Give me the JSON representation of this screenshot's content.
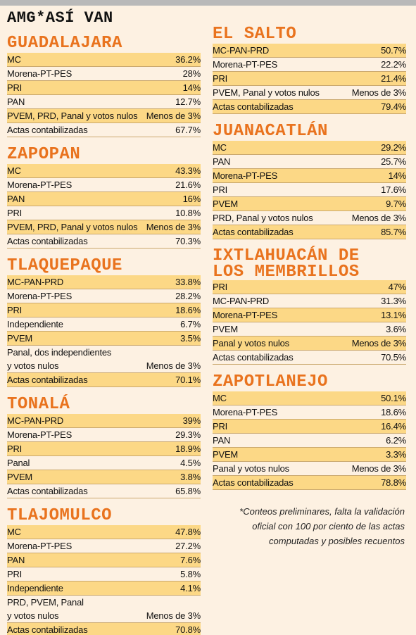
{
  "title": "AMG*ASÍ VAN",
  "columns": [
    [
      {
        "name": "GUADALAJARA",
        "rows": [
          [
            "MC",
            "36.2%"
          ],
          [
            "Morena-PT-PES",
            "28%"
          ],
          [
            "PRI",
            "14%"
          ],
          [
            "PAN",
            "12.7%"
          ],
          [
            "PVEM, PRD, Panal y votos nulos",
            "Menos de 3%"
          ],
          [
            "Actas contabilizadas",
            "67.7%"
          ]
        ]
      },
      {
        "name": "ZAPOPAN",
        "rows": [
          [
            "MC",
            "43.3%"
          ],
          [
            "Morena-PT-PES",
            "21.6%"
          ],
          [
            "PAN",
            "16%"
          ],
          [
            "PRI",
            "10.8%"
          ],
          [
            "PVEM, PRD, Panal y votos nulos",
            "Menos de 3%"
          ],
          [
            "Actas contabilizadas",
            "70.3%"
          ]
        ]
      },
      {
        "name": "TLAQUEPAQUE",
        "rows": [
          [
            "MC-PAN-PRD",
            "33.8%"
          ],
          [
            "Morena-PT-PES",
            "28.2%"
          ],
          [
            "PRI",
            "18.6%"
          ],
          [
            "Independiente",
            "6.7%"
          ],
          [
            "PVEM",
            "3.5%"
          ],
          [
            "Panal, dos independientes\ny votos nulos",
            "Menos de 3%"
          ],
          [
            "Actas contabilizadas",
            "70.1%"
          ]
        ]
      },
      {
        "name": "TONALÁ",
        "rows": [
          [
            "MC-PAN-PRD",
            "39%"
          ],
          [
            "Morena-PT-PES",
            "29.3%"
          ],
          [
            "PRI",
            "18.9%"
          ],
          [
            "Panal",
            "4.5%"
          ],
          [
            "PVEM",
            "3.8%"
          ],
          [
            "Actas contabilizadas",
            "65.8%"
          ]
        ]
      },
      {
        "name": "TLAJOMULCO",
        "rows": [
          [
            "MC",
            "47.8%"
          ],
          [
            "Morena-PT-PES",
            "27.2%"
          ],
          [
            "PAN",
            "7.6%"
          ],
          [
            "PRI",
            "5.8%"
          ],
          [
            "Independiente",
            "4.1%"
          ],
          [
            "PRD, PVEM, Panal\ny votos nulos",
            "Menos de 3%"
          ],
          [
            "Actas contabilizadas",
            "70.8%"
          ]
        ]
      }
    ],
    [
      {
        "name": "EL SALTO",
        "rows": [
          [
            "MC-PAN-PRD",
            "50.7%"
          ],
          [
            "Morena-PT-PES",
            "22.2%"
          ],
          [
            "PRI",
            "21.4%"
          ],
          [
            "PVEM, Panal y votos nulos",
            "Menos de 3%"
          ],
          [
            "Actas contabilizadas",
            "79.4%"
          ]
        ]
      },
      {
        "name": "JUANACATLÁN",
        "rows": [
          [
            "MC",
            "29.2%"
          ],
          [
            "PAN",
            "25.7%"
          ],
          [
            "Morena-PT-PES",
            "14%"
          ],
          [
            "PRI",
            "17.6%"
          ],
          [
            "PVEM",
            "9.7%"
          ],
          [
            "PRD, Panal y votos nulos",
            "Menos de 3%"
          ],
          [
            "Actas contabilizadas",
            "85.7%"
          ]
        ]
      },
      {
        "name": "IXTLAHUACÁN DE\nLOS MEMBRILLOS",
        "rows": [
          [
            "PRI",
            "47%"
          ],
          [
            "MC-PAN-PRD",
            "31.3%"
          ],
          [
            "Morena-PT-PES",
            "13.1%"
          ],
          [
            "PVEM",
            "3.6%"
          ],
          [
            "Panal y votos nulos",
            "Menos de 3%"
          ],
          [
            "Actas contabilizadas",
            "70.5%"
          ]
        ]
      },
      {
        "name": "ZAPOTLANEJO",
        "rows": [
          [
            "MC",
            "50.1%"
          ],
          [
            "Morena-PT-PES",
            "18.6%"
          ],
          [
            "PRI",
            "16.4%"
          ],
          [
            "PAN",
            "6.2%"
          ],
          [
            "PVEM",
            "3.3%"
          ],
          [
            "Panal y votos nulos",
            "Menos de 3%"
          ],
          [
            "Actas contabilizadas",
            "78.8%"
          ]
        ]
      }
    ]
  ],
  "footnote": [
    "*Conteos preliminares, falta la validación",
    "oficial con 100 por ciento de las actas",
    "computadas y posibles recuentos"
  ]
}
